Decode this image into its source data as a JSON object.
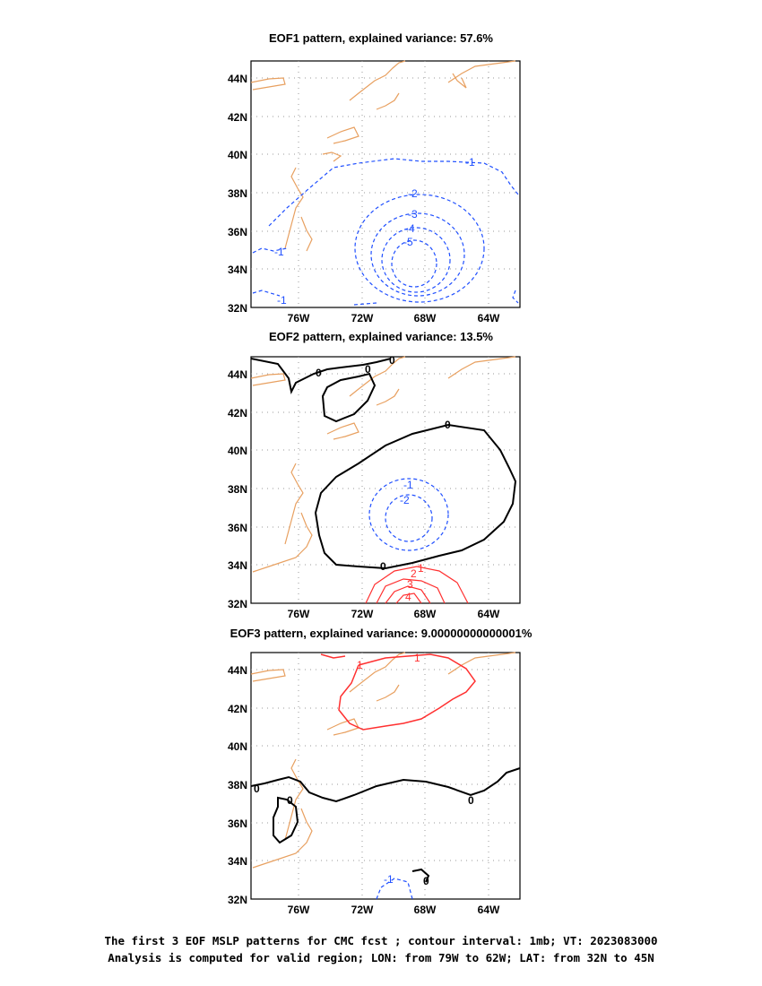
{
  "panels": [
    {
      "title": "EOF1 pattern, explained variance: 57.6%",
      "contours": [
        {
          "label": "-1",
          "color": "#1f4fff"
        },
        {
          "label": "-2",
          "color": "#1f4fff"
        },
        {
          "label": "-3",
          "color": "#1f4fff"
        },
        {
          "label": "-4",
          "color": "#1f4fff"
        },
        {
          "label": "-5",
          "color": "#1f4fff"
        }
      ]
    },
    {
      "title": "EOF2 pattern, explained variance: 13.5%",
      "contours": [
        {
          "label": "0",
          "color": "#000000"
        },
        {
          "label": "-1",
          "color": "#1f4fff"
        },
        {
          "label": "-2",
          "color": "#1f4fff"
        },
        {
          "label": "1",
          "color": "#ff3030"
        },
        {
          "label": "2",
          "color": "#ff3030"
        },
        {
          "label": "3",
          "color": "#ff3030"
        },
        {
          "label": "4",
          "color": "#ff3030"
        }
      ]
    },
    {
      "title": "EOF3 pattern, explained variance: 9.00000000000001%",
      "contours": [
        {
          "label": "1",
          "color": "#ff3030"
        },
        {
          "label": "0",
          "color": "#000000"
        },
        {
          "label": "-1",
          "color": "#1f4fff"
        }
      ]
    }
  ],
  "axes": {
    "y_ticks": [
      "44N",
      "42N",
      "40N",
      "38N",
      "36N",
      "34N",
      "32N"
    ],
    "x_ticks": [
      "76W",
      "72W",
      "68W",
      "64W"
    ]
  },
  "footer": {
    "line1": "The first 3 EOF MSLP patterns for CMC fcst ; contour interval: 1mb; VT: 2023083000",
    "line2": "Analysis is computed for valid region; LON: from 79W to 62W; LAT: from 32N to 45N"
  },
  "colors": {
    "coast": "#e8a060",
    "negative": "#1f4fff",
    "positive": "#ff3030",
    "zero": "#000000",
    "grid": "#999999"
  }
}
